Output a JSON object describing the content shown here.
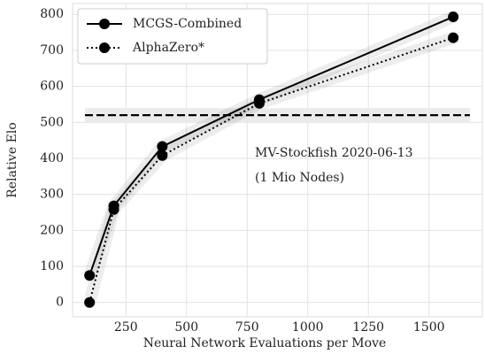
{
  "chart_data": {
    "type": "line",
    "xlabel": "Neural Network Evaluations per Move",
    "ylabel": "Relative Elo",
    "x": [
      100,
      200,
      400,
      800,
      1600
    ],
    "series": [
      {
        "name": "MCGS-Combined",
        "color": "#000000",
        "linestyle": "solid",
        "values": [
          75,
          268,
          433,
          563,
          793
        ]
      },
      {
        "name": "AlphaZero*",
        "color": "#000000",
        "linestyle": "dotted",
        "values": [
          0,
          258,
          408,
          553,
          735
        ]
      }
    ],
    "hline": {
      "value": 520,
      "color": "#000000",
      "label": [
        "MV-Stockfish 2020-06-13",
        "(1 Mio Nodes)"
      ]
    },
    "xlim": [
      30,
      1720
    ],
    "xticks": [
      250,
      500,
      750,
      1000,
      1250,
      1500
    ],
    "ylim": [
      -40,
      830
    ],
    "yticks": [
      0,
      100,
      200,
      300,
      400,
      500,
      600,
      700,
      800
    ],
    "grid": true,
    "legend": "upper left"
  }
}
